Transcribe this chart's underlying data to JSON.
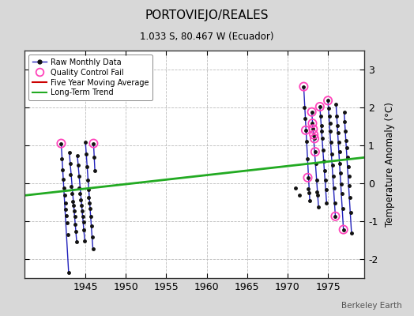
{
  "title": "PORTOVIEJO/REALES",
  "subtitle": "1.033 S, 80.467 W (Ecuador)",
  "ylabel": "Temperature Anomaly (°C)",
  "watermark": "Berkeley Earth",
  "xlim": [
    1937.5,
    1979.5
  ],
  "ylim": [
    -2.5,
    3.5
  ],
  "yticks": [
    -2,
    -1,
    0,
    1,
    2,
    3
  ],
  "xticks": [
    1945,
    1950,
    1955,
    1960,
    1965,
    1970,
    1975
  ],
  "bg_color": "#d8d8d8",
  "plot_bg_color": "#ffffff",
  "grid_color": "#bbbbbb",
  "raw_line_color": "#2222bb",
  "raw_marker_color": "#111111",
  "qc_color": "#ff44bb",
  "moving_avg_color": "#cc0000",
  "trend_color": "#22aa22",
  "raw_monthly_data": [
    [
      1942.0,
      1.05
    ],
    [
      1942.083,
      0.65
    ],
    [
      1942.167,
      0.35
    ],
    [
      1942.25,
      0.1
    ],
    [
      1942.333,
      -0.12
    ],
    [
      1942.417,
      -0.32
    ],
    [
      1942.5,
      -0.52
    ],
    [
      1942.583,
      -0.68
    ],
    [
      1942.667,
      -0.85
    ],
    [
      1942.75,
      -1.05
    ],
    [
      1942.833,
      -1.35
    ],
    [
      1942.917,
      -2.35
    ],
    [
      1943.0,
      0.82
    ],
    [
      1943.083,
      0.52
    ],
    [
      1943.167,
      0.22
    ],
    [
      1943.25,
      -0.08
    ],
    [
      1943.333,
      -0.28
    ],
    [
      1943.417,
      -0.48
    ],
    [
      1943.5,
      -0.58
    ],
    [
      1943.583,
      -0.73
    ],
    [
      1943.667,
      -0.88
    ],
    [
      1943.75,
      -1.08
    ],
    [
      1943.833,
      -1.28
    ],
    [
      1943.917,
      -1.55
    ],
    [
      1944.0,
      0.72
    ],
    [
      1944.083,
      0.48
    ],
    [
      1944.167,
      0.18
    ],
    [
      1944.25,
      -0.12
    ],
    [
      1944.333,
      -0.28
    ],
    [
      1944.417,
      -0.43
    ],
    [
      1944.5,
      -0.58
    ],
    [
      1944.583,
      -0.73
    ],
    [
      1944.667,
      -0.88
    ],
    [
      1944.75,
      -1.03
    ],
    [
      1944.833,
      -1.23
    ],
    [
      1944.917,
      -1.53
    ],
    [
      1945.0,
      1.08
    ],
    [
      1945.083,
      0.78
    ],
    [
      1945.167,
      0.43
    ],
    [
      1945.25,
      0.08
    ],
    [
      1945.333,
      -0.17
    ],
    [
      1945.417,
      -0.37
    ],
    [
      1945.5,
      -0.52
    ],
    [
      1945.583,
      -0.67
    ],
    [
      1945.667,
      -0.87
    ],
    [
      1945.75,
      -1.12
    ],
    [
      1945.833,
      -1.42
    ],
    [
      1945.917,
      -1.72
    ],
    [
      1946.0,
      1.05
    ],
    [
      1946.083,
      0.68
    ],
    [
      1946.167,
      0.33
    ],
    [
      1971.0,
      -0.12
    ],
    [
      1971.5,
      -0.32
    ],
    [
      1972.0,
      2.55
    ],
    [
      1972.083,
      2.0
    ],
    [
      1972.167,
      1.7
    ],
    [
      1972.25,
      1.4
    ],
    [
      1972.333,
      1.1
    ],
    [
      1972.417,
      0.65
    ],
    [
      1972.5,
      0.15
    ],
    [
      1972.583,
      -0.15
    ],
    [
      1972.667,
      -0.25
    ],
    [
      1972.75,
      -0.45
    ],
    [
      1973.0,
      1.88
    ],
    [
      1973.083,
      1.58
    ],
    [
      1973.167,
      1.43
    ],
    [
      1973.25,
      1.28
    ],
    [
      1973.333,
      1.18
    ],
    [
      1973.417,
      0.83
    ],
    [
      1973.5,
      0.53
    ],
    [
      1973.583,
      0.08
    ],
    [
      1973.667,
      -0.22
    ],
    [
      1973.75,
      -0.32
    ],
    [
      1973.833,
      -0.62
    ],
    [
      1974.0,
      2.02
    ],
    [
      1974.083,
      1.78
    ],
    [
      1974.167,
      1.53
    ],
    [
      1974.25,
      1.38
    ],
    [
      1974.333,
      1.18
    ],
    [
      1974.417,
      0.88
    ],
    [
      1974.5,
      0.58
    ],
    [
      1974.583,
      0.33
    ],
    [
      1974.667,
      0.08
    ],
    [
      1974.75,
      -0.17
    ],
    [
      1974.833,
      -0.52
    ],
    [
      1975.0,
      2.18
    ],
    [
      1975.083,
      1.98
    ],
    [
      1975.167,
      1.78
    ],
    [
      1975.25,
      1.58
    ],
    [
      1975.333,
      1.38
    ],
    [
      1975.417,
      1.08
    ],
    [
      1975.5,
      0.78
    ],
    [
      1975.583,
      0.48
    ],
    [
      1975.667,
      0.18
    ],
    [
      1975.75,
      -0.12
    ],
    [
      1975.833,
      -0.52
    ],
    [
      1975.917,
      -0.87
    ],
    [
      1976.0,
      2.08
    ],
    [
      1976.083,
      1.78
    ],
    [
      1976.167,
      1.53
    ],
    [
      1976.25,
      1.33
    ],
    [
      1976.333,
      1.08
    ],
    [
      1976.417,
      0.83
    ],
    [
      1976.5,
      0.53
    ],
    [
      1976.583,
      0.28
    ],
    [
      1976.667,
      -0.02
    ],
    [
      1976.75,
      -0.27
    ],
    [
      1976.833,
      -0.67
    ],
    [
      1976.917,
      -1.22
    ],
    [
      1977.0,
      1.88
    ],
    [
      1977.083,
      1.63
    ],
    [
      1977.167,
      1.38
    ],
    [
      1977.25,
      1.13
    ],
    [
      1977.333,
      0.93
    ],
    [
      1977.417,
      0.68
    ],
    [
      1977.5,
      0.43
    ],
    [
      1977.583,
      0.18
    ],
    [
      1977.667,
      -0.07
    ],
    [
      1977.75,
      -0.37
    ],
    [
      1977.833,
      -0.77
    ],
    [
      1977.917,
      -1.32
    ]
  ],
  "qc_fail_points": [
    [
      1942.0,
      1.05
    ],
    [
      1946.0,
      1.05
    ],
    [
      1972.0,
      2.55
    ],
    [
      1972.25,
      1.4
    ],
    [
      1972.5,
      0.15
    ],
    [
      1973.0,
      1.88
    ],
    [
      1973.083,
      1.58
    ],
    [
      1973.167,
      1.43
    ],
    [
      1973.25,
      1.28
    ],
    [
      1973.333,
      1.18
    ],
    [
      1973.417,
      0.83
    ],
    [
      1974.0,
      2.02
    ],
    [
      1975.0,
      2.18
    ],
    [
      1975.917,
      -0.87
    ],
    [
      1976.917,
      -1.22
    ]
  ],
  "trend_x": [
    1937.5,
    1979.5
  ],
  "trend_y": [
    -0.32,
    0.68
  ],
  "segments_1940s": [
    [
      [
        1942.0,
        1942.917
      ],
      [
        1.05,
        -2.35
      ]
    ],
    [
      [
        1943.0,
        1943.917
      ],
      [
        0.82,
        -1.55
      ]
    ],
    [
      [
        1944.0,
        1944.917
      ],
      [
        0.72,
        -1.53
      ]
    ],
    [
      [
        1945.0,
        1945.917
      ],
      [
        1.08,
        -1.72
      ]
    ],
    [
      [
        1946.0,
        1946.167
      ],
      [
        1.05,
        0.33
      ]
    ]
  ],
  "segments_1970s": [
    [
      [
        1972.0,
        1972.75
      ],
      [
        2.55,
        -0.45
      ]
    ],
    [
      [
        1973.0,
        1973.833
      ],
      [
        1.88,
        -0.62
      ]
    ],
    [
      [
        1974.0,
        1974.833
      ],
      [
        2.02,
        -0.52
      ]
    ],
    [
      [
        1975.0,
        1975.917
      ],
      [
        2.18,
        -0.87
      ]
    ],
    [
      [
        1976.0,
        1976.917
      ],
      [
        2.08,
        -1.22
      ]
    ],
    [
      [
        1977.0,
        1977.917
      ],
      [
        1.88,
        -1.32
      ]
    ]
  ]
}
